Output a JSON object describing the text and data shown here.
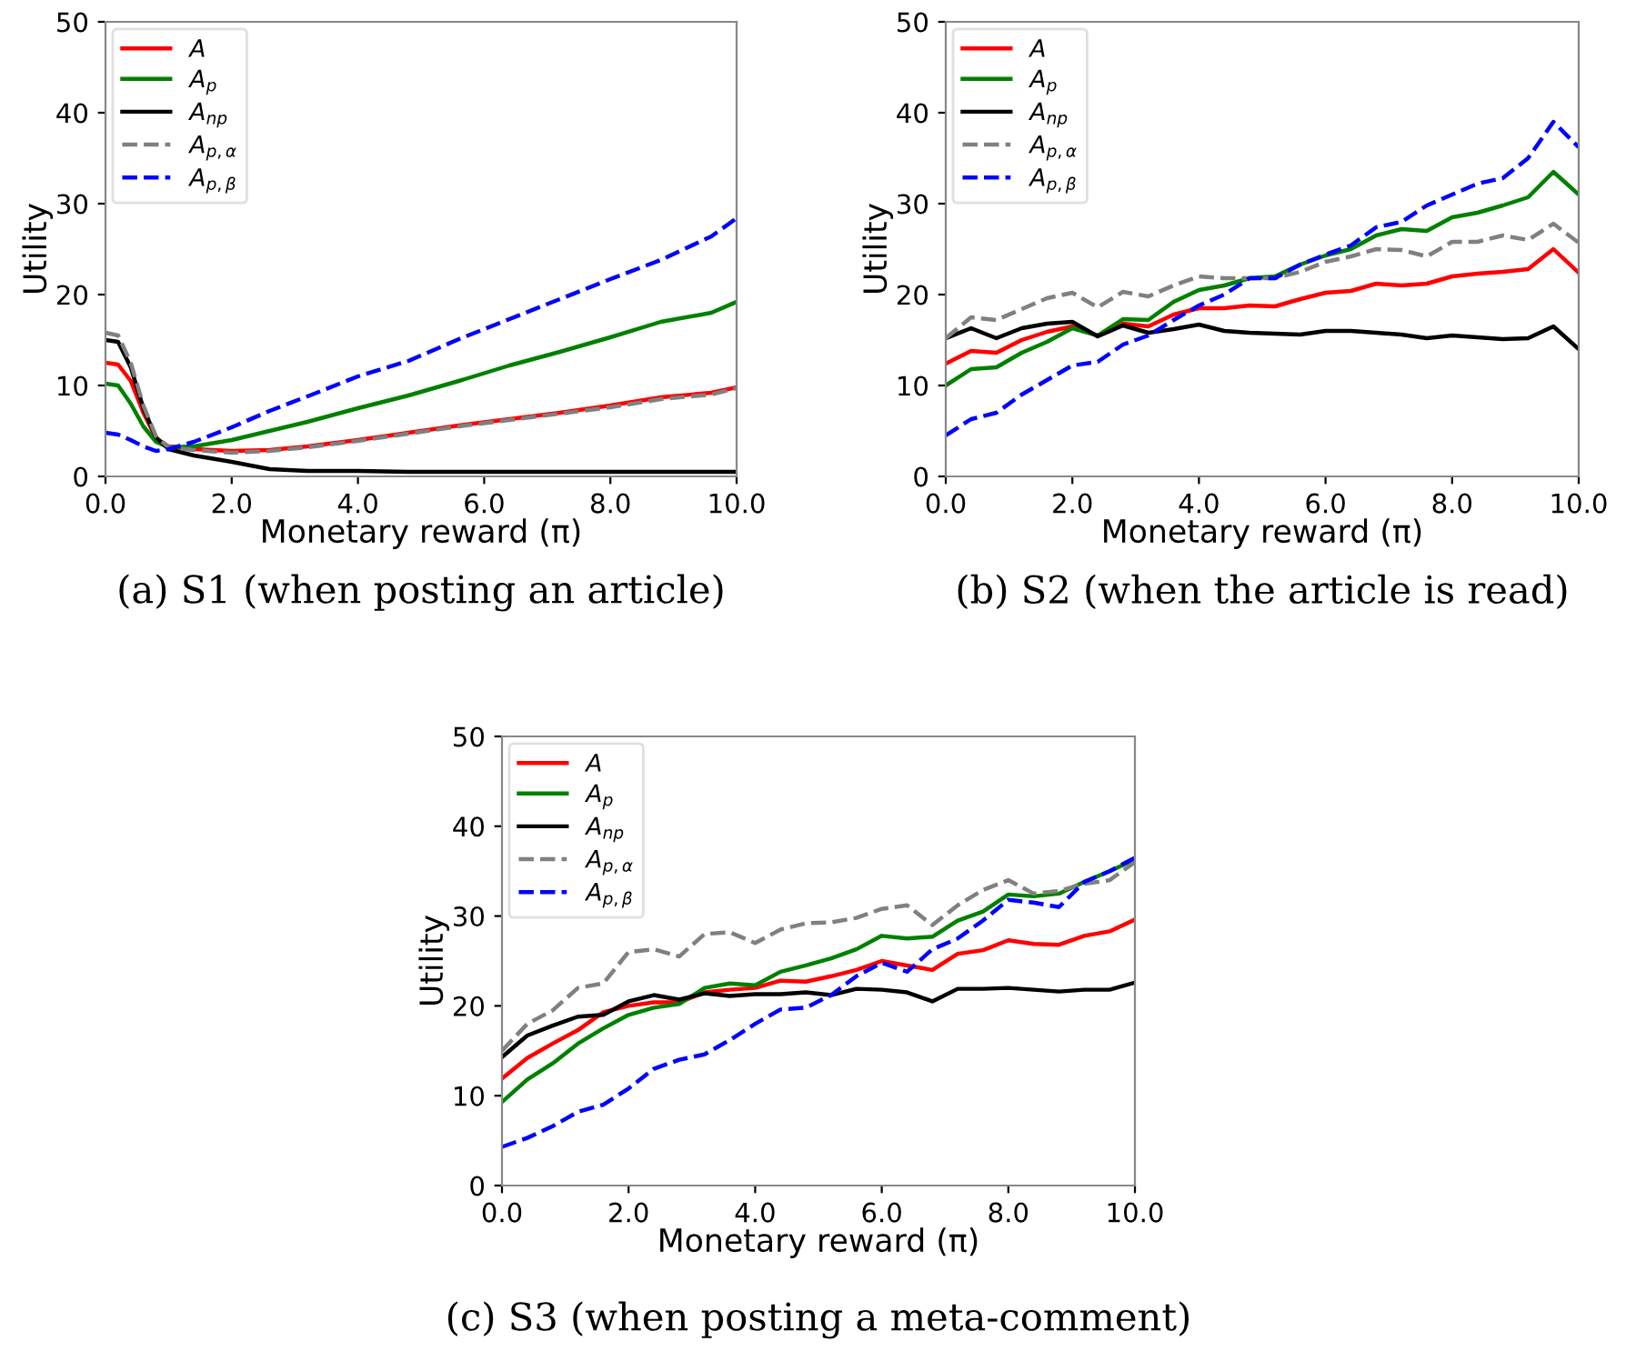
{
  "chart_data": [
    {
      "type": "line",
      "title": "(a) S1 (when posting an article)",
      "xlabel": "Monetary reward (π)",
      "ylabel": "Utility",
      "xlim": [
        0,
        10
      ],
      "ylim": [
        0,
        50
      ],
      "xticks": [
        {
          "value": 0,
          "label": "0.0"
        },
        {
          "value": 2,
          "label": "2.0"
        },
        {
          "value": 4,
          "label": "4.0"
        },
        {
          "value": 6,
          "label": "6.0"
        },
        {
          "value": 8,
          "label": "8.0"
        },
        {
          "value": 10,
          "label": "10.0"
        }
      ],
      "yticks": [
        0,
        10,
        20,
        30,
        40,
        50
      ],
      "grid": false,
      "legend": "top left",
      "marker": "none",
      "x": [
        0,
        0.2,
        0.4,
        0.6,
        0.8,
        1.0,
        1.4,
        2.0,
        2.6,
        3.2,
        4.0,
        4.8,
        5.6,
        6.4,
        7.2,
        8.0,
        8.8,
        9.6,
        10.0
      ],
      "series": [
        {
          "name": "A",
          "color": "#ff0000",
          "line_style": "solid",
          "values": [
            12.5,
            12.3,
            10.5,
            7,
            4.2,
            3.3,
            3.0,
            2.8,
            2.9,
            3.3,
            4.0,
            4.8,
            5.6,
            6.3,
            7.0,
            7.8,
            8.7,
            9.2,
            9.8
          ]
        },
        {
          "name": "A$_{p}$",
          "color": "#008000",
          "line_style": "solid",
          "values": [
            10.2,
            10.0,
            8,
            5.5,
            3.8,
            3.2,
            3.3,
            4.0,
            5.0,
            6.0,
            7.5,
            8.9,
            10.5,
            12.2,
            13.7,
            15.3,
            17.0,
            18.0,
            19.2
          ]
        },
        {
          "name": "A$_{np}$",
          "color": "#000000",
          "line_style": "solid",
          "values": [
            15,
            14.8,
            12,
            7.5,
            4.3,
            3.0,
            2.3,
            1.6,
            0.8,
            0.6,
            0.6,
            0.5,
            0.5,
            0.5,
            0.5,
            0.5,
            0.5,
            0.5,
            0.5
          ]
        },
        {
          "name": "A$_{p,α}$",
          "color": "#808080",
          "line_style": "dashed",
          "values": [
            15.8,
            15.5,
            12.5,
            7.8,
            4.4,
            3.2,
            2.9,
            2.6,
            2.8,
            3.2,
            3.9,
            4.7,
            5.5,
            6.2,
            6.9,
            7.6,
            8.5,
            9.0,
            9.7
          ]
        },
        {
          "name": "A$_{p,β}$",
          "color": "#0000ff",
          "line_style": "dashed",
          "values": [
            4.8,
            4.6,
            4.0,
            3.3,
            2.8,
            3.0,
            3.8,
            5.4,
            7.2,
            8.8,
            11.0,
            12.7,
            15.1,
            17.3,
            19.5,
            21.7,
            23.8,
            26.4,
            28.4
          ]
        }
      ]
    },
    {
      "type": "line",
      "title": "(b) S2 (when the article is read)",
      "xlabel": "Monetary reward (π)",
      "ylabel": "Utility",
      "xlim": [
        0,
        10
      ],
      "ylim": [
        0,
        50
      ],
      "xticks": [
        {
          "value": 0,
          "label": "0.0"
        },
        {
          "value": 2,
          "label": "2.0"
        },
        {
          "value": 4,
          "label": "4.0"
        },
        {
          "value": 6,
          "label": "6.0"
        },
        {
          "value": 8,
          "label": "8.0"
        },
        {
          "value": 10,
          "label": "10.0"
        }
      ],
      "yticks": [
        0,
        10,
        20,
        30,
        40,
        50
      ],
      "grid": false,
      "legend": "top left",
      "marker": "none",
      "x": [
        0,
        0.4,
        0.8,
        1.2,
        1.6,
        2.0,
        2.4,
        2.8,
        3.2,
        3.6,
        4.0,
        4.4,
        4.8,
        5.2,
        5.6,
        6.0,
        6.4,
        6.8,
        7.2,
        7.6,
        8.0,
        8.4,
        8.8,
        9.2,
        9.6,
        10.0
      ],
      "series": [
        {
          "name": "A",
          "color": "#ff0000",
          "line_style": "solid",
          "values": [
            12.4,
            13.8,
            13.6,
            15.0,
            15.9,
            16.5,
            15.5,
            16.8,
            16.5,
            17.8,
            18.5,
            18.5,
            18.8,
            18.7,
            19.5,
            20.2,
            20.4,
            21.2,
            21.0,
            21.2,
            22.0,
            22.3,
            22.5,
            22.8,
            25.0,
            22.4
          ]
        },
        {
          "name": "A$_{p}$",
          "color": "#008000",
          "line_style": "solid",
          "values": [
            10.0,
            11.8,
            12.0,
            13.6,
            14.8,
            16.3,
            15.5,
            17.3,
            17.2,
            19.2,
            20.5,
            21.0,
            21.8,
            22.0,
            23.3,
            24.3,
            25.0,
            26.5,
            27.2,
            27.0,
            28.5,
            29.0,
            29.8,
            30.7,
            33.5,
            31.0
          ]
        },
        {
          "name": "A$_{np}$",
          "color": "#000000",
          "line_style": "solid",
          "values": [
            15.2,
            16.3,
            15.2,
            16.3,
            16.8,
            17.0,
            15.4,
            16.6,
            15.8,
            16.2,
            16.7,
            16.0,
            15.8,
            15.7,
            15.6,
            16.0,
            16.0,
            15.8,
            15.6,
            15.2,
            15.5,
            15.3,
            15.1,
            15.2,
            16.5,
            14.0
          ]
        },
        {
          "name": "A$_{p,α}$",
          "color": "#808080",
          "line_style": "dashed",
          "values": [
            15.2,
            17.5,
            17.2,
            18.4,
            19.6,
            20.2,
            18.6,
            20.3,
            19.8,
            21.0,
            22.0,
            21.8,
            21.8,
            21.8,
            22.5,
            23.6,
            24.2,
            25.0,
            24.9,
            24.2,
            25.8,
            25.8,
            26.5,
            26.0,
            27.8,
            25.7
          ]
        },
        {
          "name": "A$_{p,β}$",
          "color": "#0000ff",
          "line_style": "dashed",
          "values": [
            4.5,
            6.3,
            7.0,
            9.0,
            10.6,
            12.2,
            12.6,
            14.5,
            15.5,
            17.2,
            18.8,
            20.0,
            21.8,
            21.8,
            23.3,
            24.4,
            25.4,
            27.4,
            28.0,
            29.8,
            31.0,
            32.2,
            32.8,
            35.0,
            39.0,
            36.2
          ]
        }
      ]
    },
    {
      "type": "line",
      "title": "(c) S3 (when posting a meta-comment)",
      "xlabel": "Monetary reward (π)",
      "ylabel": "Utility",
      "xlim": [
        0,
        10
      ],
      "ylim": [
        0,
        50
      ],
      "xticks": [
        {
          "value": 0,
          "label": "0.0"
        },
        {
          "value": 2,
          "label": "2.0"
        },
        {
          "value": 4,
          "label": "4.0"
        },
        {
          "value": 6,
          "label": "6.0"
        },
        {
          "value": 8,
          "label": "8.0"
        },
        {
          "value": 10,
          "label": "10.0"
        }
      ],
      "yticks": [
        0,
        10,
        20,
        30,
        40,
        50
      ],
      "grid": false,
      "legend": "top left",
      "marker": "none",
      "x": [
        0,
        0.4,
        0.8,
        1.2,
        1.6,
        2.0,
        2.4,
        2.8,
        3.2,
        3.6,
        4.0,
        4.4,
        4.8,
        5.2,
        5.6,
        6.0,
        6.4,
        6.8,
        7.2,
        7.6,
        8.0,
        8.4,
        8.8,
        9.2,
        9.6,
        10.0
      ],
      "series": [
        {
          "name": "A",
          "color": "#ff0000",
          "line_style": "solid",
          "values": [
            11.9,
            14.2,
            15.8,
            17.3,
            19.3,
            20.0,
            20.4,
            20.4,
            21.5,
            21.8,
            22.0,
            22.8,
            22.7,
            23.3,
            24.0,
            25.0,
            24.5,
            24.0,
            25.8,
            26.2,
            27.3,
            26.9,
            26.8,
            27.8,
            28.3,
            29.6
          ]
        },
        {
          "name": "A$_{p}$",
          "color": "#008000",
          "line_style": "solid",
          "values": [
            9.3,
            11.8,
            13.6,
            15.8,
            17.5,
            19.0,
            19.8,
            20.2,
            22.0,
            22.5,
            22.3,
            23.8,
            24.5,
            25.3,
            26.3,
            27.8,
            27.5,
            27.7,
            29.5,
            30.5,
            32.4,
            32.2,
            32.5,
            33.8,
            35.0,
            36.3
          ]
        },
        {
          "name": "A$_{np}$",
          "color": "#000000",
          "line_style": "solid",
          "values": [
            14.3,
            16.7,
            17.8,
            18.8,
            19.0,
            20.5,
            21.2,
            20.7,
            21.4,
            21.1,
            21.3,
            21.3,
            21.5,
            21.2,
            21.9,
            21.8,
            21.5,
            20.5,
            21.9,
            21.9,
            22.0,
            21.8,
            21.6,
            21.8,
            21.8,
            22.6
          ]
        },
        {
          "name": "A$_{p,α}$",
          "color": "#808080",
          "line_style": "dashed",
          "values": [
            15.0,
            18.0,
            19.5,
            22.0,
            22.5,
            26.0,
            26.3,
            25.5,
            28.0,
            28.2,
            27.0,
            28.5,
            29.2,
            29.3,
            29.8,
            30.8,
            31.2,
            29.0,
            31.2,
            32.9,
            34.0,
            32.5,
            32.8,
            33.6,
            34.0,
            36.0
          ]
        },
        {
          "name": "A$_{p,β}$",
          "color": "#0000ff",
          "line_style": "dashed",
          "values": [
            4.3,
            5.3,
            6.6,
            8.2,
            9.0,
            10.8,
            13.0,
            14.0,
            14.6,
            16.2,
            18.0,
            19.6,
            19.8,
            21.2,
            23.3,
            24.8,
            23.8,
            26.3,
            27.5,
            29.5,
            31.8,
            31.5,
            31.0,
            33.8,
            35.0,
            36.5
          ]
        }
      ]
    }
  ]
}
